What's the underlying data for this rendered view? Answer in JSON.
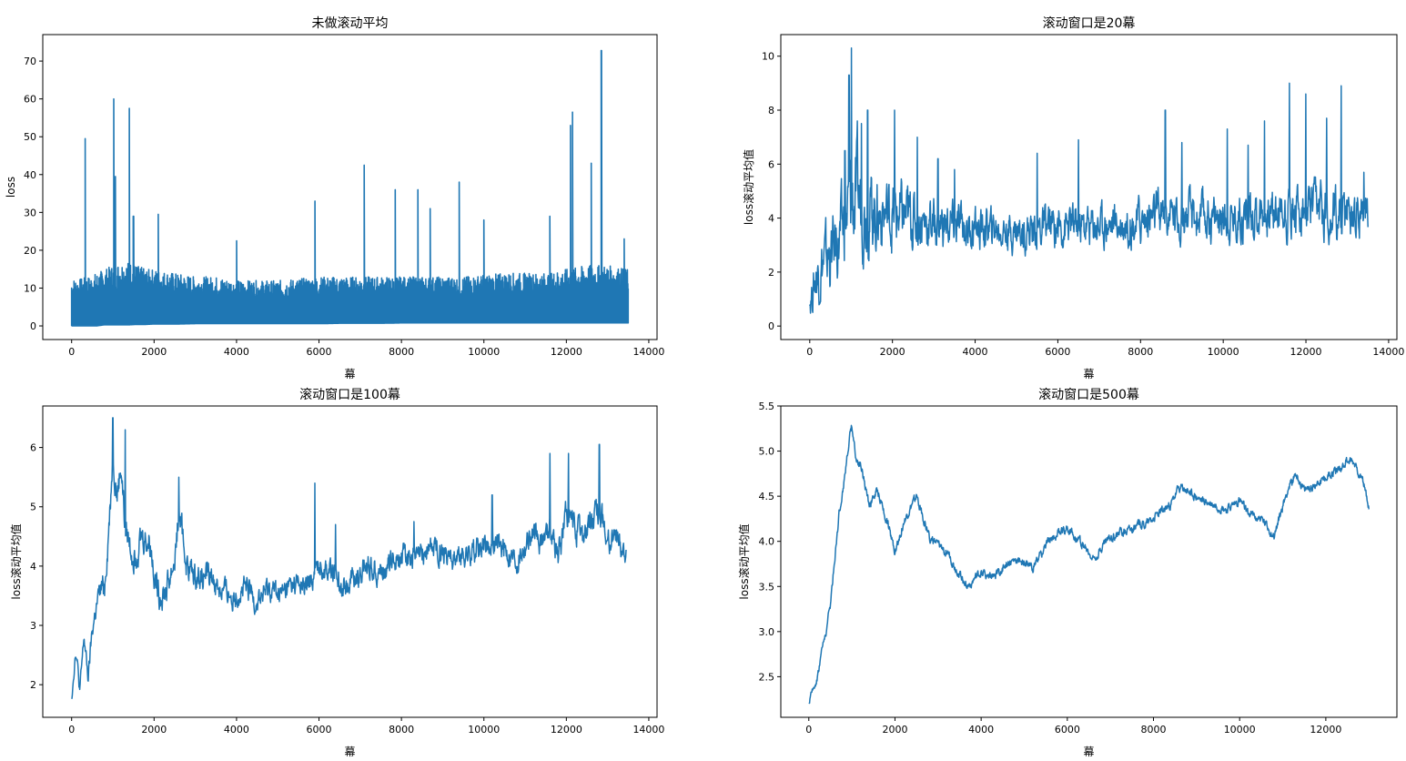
{
  "chart_data": [
    {
      "type": "line",
      "title": "未做滚动平均",
      "xlabel": "幕",
      "ylabel": "loss",
      "xlim": [
        -700,
        14200
      ],
      "ylim": [
        -3.6,
        77
      ],
      "xticks": [
        0,
        2000,
        4000,
        6000,
        8000,
        10000,
        12000,
        14000
      ],
      "yticks": [
        0,
        10,
        20,
        30,
        40,
        50,
        60,
        70
      ],
      "color": "#1f77b4",
      "grid": false,
      "series": [
        {
          "style": "dense",
          "x": [
            0,
            200,
            400,
            600,
            800,
            1000,
            1200,
            1400,
            1600,
            1800,
            2000,
            2500,
            3000,
            3500,
            4000,
            4500,
            5000,
            5500,
            6000,
            6500,
            7000,
            7500,
            8000,
            8500,
            9000,
            9500,
            10000,
            10500,
            11000,
            11500,
            12000,
            12500,
            13000,
            13500
          ],
          "low": [
            0,
            0,
            0,
            0,
            0.3,
            0.3,
            0.3,
            0.3,
            0.4,
            0.4,
            0.5,
            0.5,
            0.6,
            0.6,
            0.6,
            0.6,
            0.6,
            0.6,
            0.6,
            0.7,
            0.7,
            0.7,
            0.8,
            0.8,
            0.8,
            0.8,
            0.8,
            0.8,
            0.8,
            0.8,
            0.8,
            0.8,
            0.8,
            0.8
          ],
          "high": [
            12.5,
            12.5,
            13,
            14,
            15,
            16,
            17,
            17,
            16,
            15,
            15,
            14,
            13,
            13,
            12,
            12,
            12,
            12.5,
            13,
            13,
            13,
            13,
            13,
            13,
            13,
            13,
            13.5,
            14,
            14,
            14,
            15,
            16,
            16,
            15
          ],
          "spikes_x": [
            330,
            1020,
            1060,
            1400,
            1500,
            2100,
            4000,
            5900,
            7100,
            7850,
            8400,
            8700,
            9400,
            10000,
            11600,
            12100,
            12150,
            12600,
            12850,
            13400
          ],
          "spikes_y": [
            49.5,
            60,
            39.5,
            57.5,
            29,
            29.5,
            22.5,
            33,
            42.5,
            36,
            36,
            31,
            38,
            28,
            29,
            53,
            56.5,
            43,
            72.8,
            23
          ]
        }
      ]
    },
    {
      "type": "line",
      "title": "滚动窗口是20幕",
      "xlabel": "幕",
      "ylabel": "loss滚动平均值",
      "xlim": [
        -700,
        14200
      ],
      "ylim": [
        -0.5,
        10.8
      ],
      "xticks": [
        0,
        2000,
        4000,
        6000,
        8000,
        10000,
        12000,
        14000
      ],
      "yticks": [
        0,
        2,
        4,
        6,
        8,
        10
      ],
      "color": "#1f77b4",
      "grid": false,
      "series": [
        {
          "style": "noisy",
          "seed": 20,
          "x": [
            0,
            150,
            300,
            500,
            700,
            900,
            1000,
            1100,
            1300,
            1600,
            2000,
            2500,
            3000,
            3500,
            4000,
            4500,
            5000,
            5500,
            6000,
            6500,
            7000,
            7500,
            8000,
            8500,
            9000,
            9500,
            10000,
            10500,
            11000,
            11500,
            12000,
            12500,
            13000,
            13500
          ],
          "center": [
            0.8,
            1.8,
            2.3,
            2.6,
            3.2,
            4.0,
            4.7,
            4.6,
            4.5,
            4.2,
            4.1,
            4.0,
            3.8,
            3.7,
            3.6,
            3.6,
            3.5,
            3.6,
            3.7,
            3.7,
            3.8,
            3.8,
            3.9,
            4.1,
            4.1,
            4.0,
            4.0,
            4.1,
            4.2,
            4.3,
            4.3,
            4.2,
            4.1,
            4.4
          ],
          "amplitude": [
            0.6,
            1.2,
            1.4,
            1.5,
            1.6,
            1.8,
            2.4,
            2.2,
            1.9,
            1.6,
            1.5,
            1.3,
            1.1,
            1.0,
            0.9,
            0.8,
            0.8,
            0.9,
            0.9,
            0.9,
            0.9,
            0.9,
            1.0,
            1.0,
            1.0,
            1.0,
            1.0,
            1.0,
            1.1,
            1.1,
            1.1,
            1.1,
            1.1,
            0.9
          ],
          "spikes_x": [
            850,
            950,
            1010,
            1150,
            1250,
            1400,
            2050,
            2600,
            3100,
            3500,
            5500,
            6500,
            8600,
            9000,
            10100,
            10600,
            11000,
            11600,
            12000,
            12500,
            12850,
            13400
          ],
          "spikes_y": [
            6.5,
            9.3,
            10.3,
            7.6,
            7.5,
            8.0,
            8.0,
            7.0,
            6.2,
            5.8,
            6.4,
            6.9,
            8.0,
            6.8,
            7.3,
            6.7,
            7.6,
            9.0,
            8.6,
            7.7,
            8.9,
            5.7
          ]
        }
      ]
    },
    {
      "type": "line",
      "title": "滚动窗口是100幕",
      "xlabel": "幕",
      "ylabel": "loss滚动平均值",
      "xlim": [
        -700,
        14200
      ],
      "ylim": [
        1.45,
        6.7
      ],
      "xticks": [
        0,
        2000,
        4000,
        6000,
        8000,
        10000,
        12000,
        14000
      ],
      "yticks": [
        2,
        3,
        4,
        5,
        6
      ],
      "color": "#1f77b4",
      "grid": false,
      "series": [
        {
          "style": "noisy",
          "seed": 100,
          "x": [
            0,
            100,
            200,
            300,
            400,
            500,
            600,
            700,
            800,
            900,
            1000,
            1100,
            1200,
            1300,
            1500,
            1700,
            1900,
            2100,
            2300,
            2500,
            2600,
            2800,
            3000,
            3300,
            3600,
            3900,
            4200,
            4500,
            4800,
            5100,
            5400,
            5700,
            6000,
            6300,
            6600,
            6900,
            7200,
            7500,
            7800,
            8100,
            8400,
            8700,
            9000,
            9300,
            9600,
            9900,
            10200,
            10500,
            10800,
            11100,
            11400,
            11600,
            11800,
            12000,
            12200,
            12400,
            12600,
            12800,
            13000,
            13200,
            13450
          ],
          "center": [
            1.8,
            2.6,
            1.9,
            2.8,
            2.1,
            2.9,
            3.3,
            3.6,
            3.7,
            4.6,
            5.9,
            5.2,
            5.7,
            4.6,
            4.2,
            4.5,
            4.4,
            3.5,
            3.6,
            4.1,
            4.9,
            4.0,
            3.8,
            3.9,
            3.6,
            3.5,
            3.6,
            3.4,
            3.6,
            3.5,
            3.7,
            3.6,
            4.0,
            3.9,
            3.7,
            3.8,
            4.0,
            3.9,
            4.1,
            4.2,
            4.1,
            4.3,
            4.3,
            4.1,
            4.2,
            4.3,
            4.4,
            4.3,
            4.1,
            4.5,
            4.4,
            4.7,
            4.2,
            4.9,
            4.6,
            4.5,
            4.7,
            4.9,
            4.4,
            4.5,
            4.2
          ],
          "amplitude": [
            0.15,
            0.15,
            0.15,
            0.15,
            0.15,
            0.2,
            0.2,
            0.25,
            0.3,
            0.3,
            0.3,
            0.3,
            0.3,
            0.3,
            0.3,
            0.3,
            0.3,
            0.3,
            0.3,
            0.3,
            0.3,
            0.3,
            0.25,
            0.25,
            0.25,
            0.25,
            0.25,
            0.25,
            0.25,
            0.25,
            0.25,
            0.25,
            0.25,
            0.25,
            0.25,
            0.25,
            0.25,
            0.25,
            0.25,
            0.25,
            0.25,
            0.25,
            0.25,
            0.25,
            0.25,
            0.25,
            0.25,
            0.25,
            0.25,
            0.25,
            0.25,
            0.25,
            0.3,
            0.3,
            0.3,
            0.3,
            0.3,
            0.3,
            0.25,
            0.25,
            0.2
          ],
          "spikes_x": [
            1000,
            1300,
            2600,
            5900,
            6400,
            8300,
            10200,
            11600,
            12050,
            12800
          ],
          "spikes_y": [
            6.5,
            6.3,
            5.5,
            5.4,
            4.7,
            4.75,
            5.2,
            5.9,
            5.9,
            6.05
          ]
        }
      ]
    },
    {
      "type": "line",
      "title": "滚动窗口是500幕",
      "xlabel": "幕",
      "ylabel": "loss滚动平均值",
      "xlim": [
        -650,
        13650
      ],
      "ylim": [
        2.05,
        5.5
      ],
      "xticks": [
        0,
        2000,
        4000,
        6000,
        8000,
        10000,
        12000
      ],
      "yticks": [
        2.5,
        3.0,
        3.5,
        4.0,
        4.5,
        5.0,
        5.5
      ],
      "color": "#1f77b4",
      "grid": false,
      "series": [
        {
          "style": "noisy",
          "seed": 500,
          "x": [
            0,
            100,
            200,
            300,
            400,
            500,
            600,
            700,
            800,
            900,
            1000,
            1100,
            1200,
            1400,
            1600,
            1800,
            2000,
            2200,
            2500,
            2800,
            3000,
            3200,
            3400,
            3700,
            4000,
            4300,
            4600,
            4900,
            5200,
            5500,
            5800,
            6000,
            6300,
            6600,
            6900,
            7200,
            7500,
            7800,
            8100,
            8400,
            8600,
            8800,
            9100,
            9400,
            9700,
            10000,
            10200,
            10500,
            10800,
            11100,
            11300,
            11500,
            11800,
            12100,
            12300,
            12500,
            12700,
            12900,
            13000
          ],
          "center": [
            2.2,
            2.35,
            2.5,
            2.8,
            3.0,
            3.3,
            3.8,
            4.3,
            4.6,
            5.0,
            5.3,
            4.9,
            4.85,
            4.4,
            4.55,
            4.25,
            3.9,
            4.2,
            4.5,
            4.05,
            3.95,
            3.9,
            3.7,
            3.5,
            3.65,
            3.6,
            3.75,
            3.8,
            3.7,
            3.95,
            4.1,
            4.15,
            4.0,
            3.8,
            4.0,
            4.1,
            4.15,
            4.2,
            4.3,
            4.4,
            4.6,
            4.55,
            4.45,
            4.4,
            4.35,
            4.45,
            4.3,
            4.25,
            4.05,
            4.55,
            4.75,
            4.55,
            4.65,
            4.75,
            4.8,
            4.9,
            4.85,
            4.6,
            4.35
          ],
          "amplitude": [
            0.05,
            0.05,
            0.05,
            0.05,
            0.05,
            0.06,
            0.06,
            0.06,
            0.06,
            0.06,
            0.06,
            0.06,
            0.06,
            0.06,
            0.06,
            0.06,
            0.06,
            0.06,
            0.06,
            0.06,
            0.06,
            0.06,
            0.06,
            0.06,
            0.06,
            0.06,
            0.06,
            0.06,
            0.06,
            0.06,
            0.06,
            0.06,
            0.06,
            0.06,
            0.06,
            0.06,
            0.06,
            0.06,
            0.06,
            0.06,
            0.06,
            0.06,
            0.06,
            0.06,
            0.06,
            0.06,
            0.06,
            0.06,
            0.06,
            0.06,
            0.06,
            0.06,
            0.06,
            0.06,
            0.06,
            0.06,
            0.06,
            0.06,
            0.06
          ],
          "spikes_x": [],
          "spikes_y": []
        }
      ]
    }
  ]
}
